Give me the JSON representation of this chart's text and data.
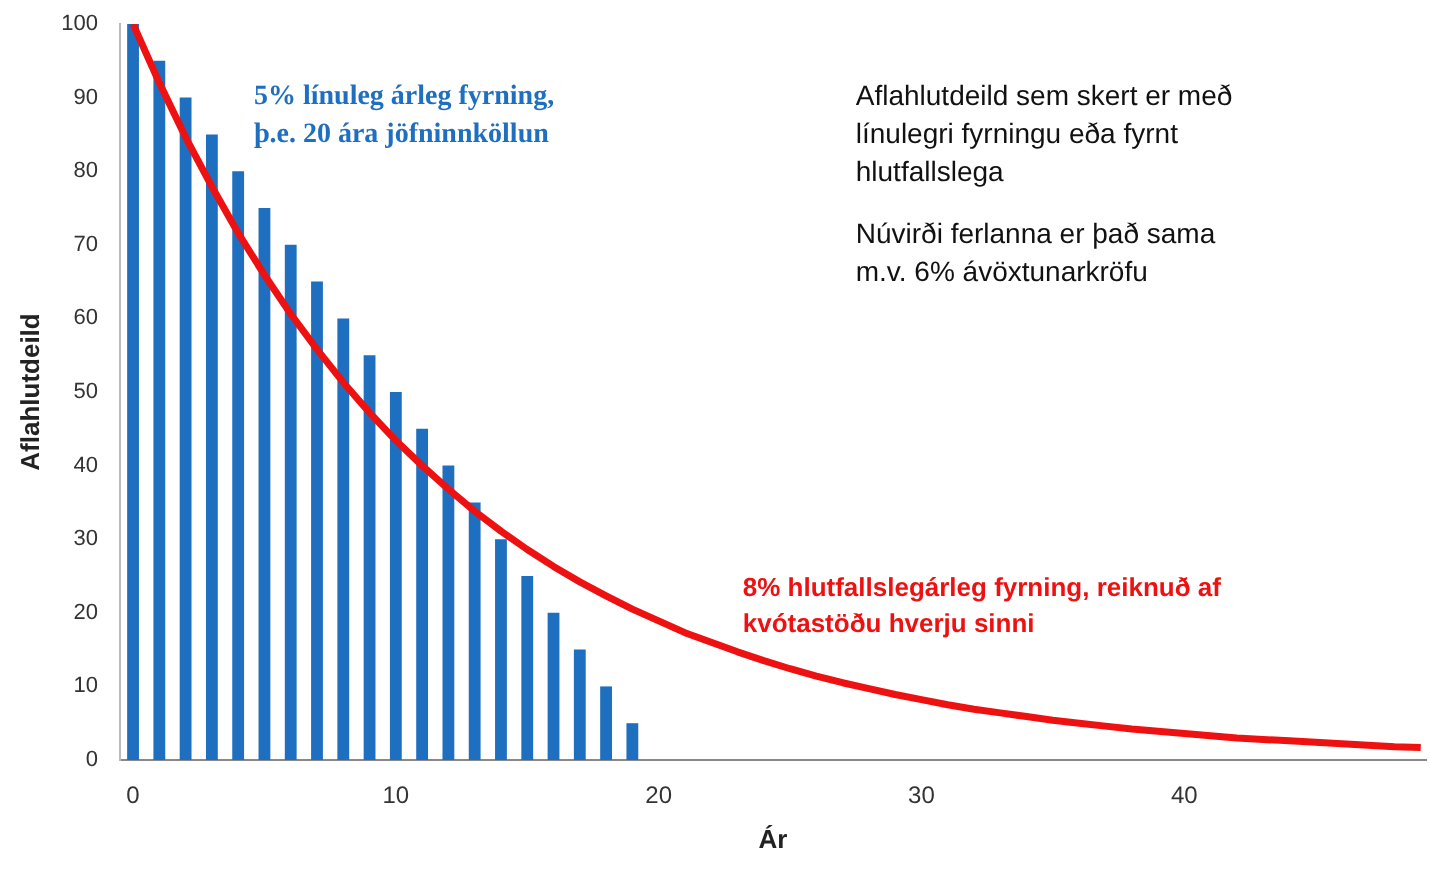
{
  "chart_data": {
    "type": "bar",
    "xlabel": "Ár",
    "ylabel": "Aflahlutdeild",
    "xlim": [
      -0.5,
      49.2
    ],
    "xticks": [
      0,
      10,
      20,
      30,
      40
    ],
    "ylim": [
      0,
      100
    ],
    "yticks": [
      0,
      10,
      20,
      30,
      40,
      50,
      60,
      70,
      80,
      90,
      100
    ],
    "grid": false,
    "legend": false,
    "series": [
      {
        "name": "5% línuleg árleg fyrning,\nþ.e. 20 ára jöfninnköllun",
        "color": "#1f6fc0",
        "x": [
          0,
          1,
          2,
          3,
          4,
          5,
          6,
          7,
          8,
          9,
          10,
          11,
          12,
          13,
          14,
          15,
          16,
          17,
          18,
          19
        ],
        "values": [
          100,
          95,
          90,
          85,
          80,
          75,
          70,
          65,
          60,
          55,
          50,
          45,
          40,
          35,
          30,
          25,
          20,
          15,
          10,
          5
        ]
      },
      {
        "name": "8% hlutfallslegárleg fyrning, reiknuð af\nkvótastöðu hverju sinni",
        "color": "#ee1111",
        "type": "line",
        "marker": "none",
        "line_style": "solid",
        "x": [
          0,
          1,
          2,
          3,
          4,
          5,
          6,
          7,
          8,
          9,
          10,
          11,
          12,
          13,
          14,
          15,
          16,
          17,
          18,
          19,
          20,
          21,
          22,
          23,
          24,
          25,
          26,
          27,
          28,
          29,
          30,
          31,
          32,
          33,
          34,
          35,
          36,
          37,
          38,
          39,
          40,
          41,
          42,
          43,
          44,
          45,
          46,
          47,
          48,
          49
        ],
        "values": [
          100,
          92,
          84.6,
          77.9,
          71.6,
          65.9,
          60.6,
          55.8,
          51.3,
          47.2,
          43.4,
          40.0,
          36.8,
          33.8,
          31.1,
          28.6,
          26.3,
          24.2,
          22.3,
          20.5,
          18.9,
          17.3,
          16.0,
          14.7,
          13.5,
          12.4,
          11.4,
          10.5,
          9.7,
          8.9,
          8.2,
          7.5,
          6.9,
          6.4,
          5.9,
          5.4,
          5.0,
          4.6,
          4.2,
          3.9,
          3.6,
          3.3,
          3.0,
          2.8,
          2.6,
          2.4,
          2.2,
          2.0,
          1.8,
          1.7
        ]
      }
    ],
    "annotations": [
      "Aflahlutdeild sem skert er með\nlínulegri fyrningu eða fyrnt\nhlutfallslega",
      "Núvirði ferlanna er það sama\nm.v. 6% ávöxtunarkröfu"
    ]
  }
}
